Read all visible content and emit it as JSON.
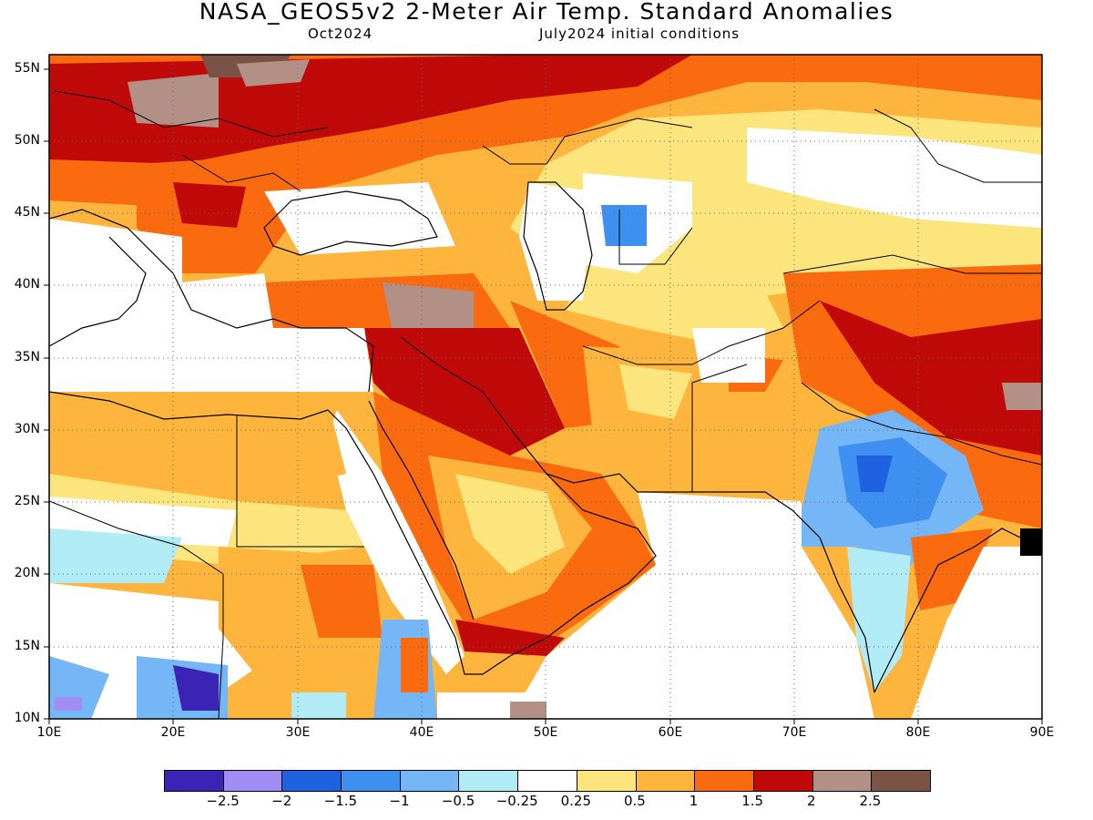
{
  "title": "NASA_GEOS5v2 2-Meter Air Temp. Standard Anomalies",
  "subtitle_left": "Oct2024",
  "subtitle_right": "July2024 initial conditions",
  "map": {
    "lon_range": [
      10,
      90
    ],
    "lat_range": [
      10,
      56
    ],
    "lat_labels": [
      "55N",
      "50N",
      "45N",
      "40N",
      "35N",
      "30N",
      "25N",
      "20N",
      "15N",
      "10N"
    ],
    "lon_labels": [
      "10E",
      "20E",
      "30E",
      "40E",
      "50E",
      "60E",
      "70E",
      "80E",
      "90E"
    ],
    "gridlines": "dotted"
  },
  "colorbar": {
    "colors": [
      "#3b23b5",
      "#a08cf2",
      "#1e62e0",
      "#3d8ff0",
      "#75b6f6",
      "#b1ecf6",
      "#ffffff",
      "#fde57d",
      "#fdb53e",
      "#fa6a0f",
      "#c00a0a",
      "#b39085",
      "#7a5346"
    ],
    "labels": [
      "-2.5",
      "-2",
      "-1.5",
      "-1",
      "-0.5",
      "-0.25",
      "0.25",
      "0.5",
      "1",
      "1.5",
      "2",
      "2.5"
    ]
  }
}
